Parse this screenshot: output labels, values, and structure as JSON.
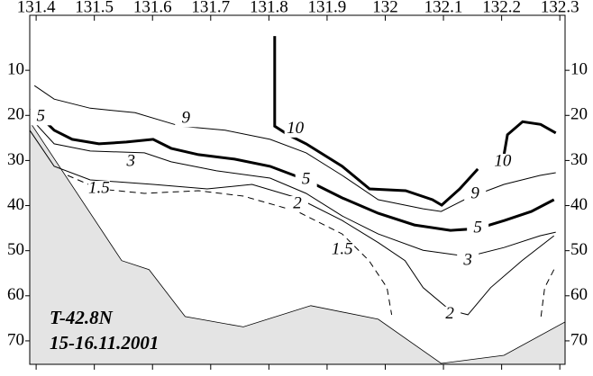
{
  "chart_data": {
    "type": "contour",
    "annotations": [
      "T-42.8N",
      "15-16.11.2001"
    ],
    "xlim": [
      131.389,
      132.309
    ],
    "ylim": [
      -2.2,
      75.2
    ],
    "xticks": [
      131.4,
      131.5,
      131.6,
      131.7,
      131.8,
      131.9,
      132,
      132.1,
      132.2,
      132.3
    ],
    "yticks": [
      10,
      20,
      30,
      40,
      50,
      60,
      70
    ],
    "bottom": {
      "color": "#e4e4e4",
      "x": [
        131.389,
        131.547,
        131.594,
        131.656,
        131.756,
        131.872,
        131.988,
        132.096,
        132.204,
        132.309
      ],
      "y": [
        21.4,
        52.2,
        54.2,
        64.6,
        66.9,
        62.2,
        65.2,
        75.0,
        73.2,
        65.8
      ]
    },
    "contours": [
      {
        "level": 10,
        "color": "#000",
        "x": [
          131.81,
          131.81,
          131.833,
          131.864,
          131.926,
          131.973,
          132.035,
          132.081,
          132.097,
          132.128,
          132.159,
          null,
          132.202,
          132.21,
          132.236,
          132.267,
          132.293
        ],
        "y": [
          2.4,
          22.4,
          24.3,
          26.3,
          31.3,
          36.3,
          36.7,
          38.7,
          39.9,
          36.3,
          31.9,
          null,
          30.3,
          24.3,
          21.4,
          22.0,
          23.9
        ]
      },
      {
        "level": 9,
        "color": "#000",
        "x": [
          131.397,
          131.431,
          131.493,
          131.57,
          131.648,
          131.725,
          131.802,
          131.864,
          131.926,
          131.988,
          132.065,
          132.096,
          132.142,
          132.204,
          132.266,
          132.293
        ],
        "y": [
          13.4,
          16.4,
          18.4,
          19.4,
          22.4,
          23.3,
          25.3,
          28.3,
          33.3,
          38.7,
          40.7,
          41.3,
          38.3,
          35.3,
          33.3,
          32.7
        ]
      },
      {
        "level": 5,
        "color": "#000",
        "x": [
          131.389,
          131.408,
          131.431,
          131.462,
          131.508,
          131.555,
          131.601,
          131.632,
          131.679,
          131.741,
          131.802,
          131.864,
          131.926,
          131.988,
          132.05,
          132.112,
          132.159,
          132.205,
          132.251,
          132.29
        ],
        "y": [
          18.8,
          20.4,
          23.3,
          25.3,
          26.3,
          25.9,
          25.3,
          27.3,
          28.7,
          29.7,
          31.3,
          34.3,
          38.3,
          41.7,
          44.3,
          45.5,
          45.1,
          43.3,
          41.3,
          38.7
        ]
      },
      {
        "level": 3,
        "color": "#000",
        "x": [
          131.389,
          131.431,
          131.493,
          131.586,
          131.632,
          131.71,
          131.802,
          131.864,
          131.926,
          131.988,
          132.065,
          132.142,
          132.204,
          132.266,
          132.293
        ],
        "y": [
          20.4,
          26.3,
          27.9,
          28.3,
          30.3,
          32.3,
          33.9,
          37.3,
          42.3,
          46.3,
          49.9,
          51.3,
          49.3,
          46.7,
          45.9
        ]
      },
      {
        "level": 2,
        "color": "#000",
        "x": [
          131.389,
          131.431,
          131.493,
          131.601,
          131.694,
          131.771,
          131.849,
          131.926,
          131.988,
          132.034,
          132.065,
          132.111,
          132.142,
          132.181,
          132.235,
          132.29
        ],
        "y": [
          23.3,
          31.3,
          34.3,
          35.3,
          36.3,
          35.3,
          38.3,
          43.3,
          48.2,
          52.2,
          58.2,
          63.2,
          64.2,
          58.2,
          52.2,
          46.7
        ]
      },
      {
        "level": 1.5,
        "color": "#000",
        "dashed": true,
        "x": [
          131.454,
          131.508,
          131.586,
          131.679,
          131.756,
          131.849,
          131.926,
          131.972,
          132.003,
          132.011,
          null,
          132.29,
          132.274,
          132.267
        ],
        "y": [
          33.3,
          36.3,
          37.3,
          36.7,
          37.9,
          41.3,
          46.3,
          52.2,
          58.2,
          64.2,
          null,
          54.2,
          58.2,
          65.2
        ]
      }
    ]
  }
}
